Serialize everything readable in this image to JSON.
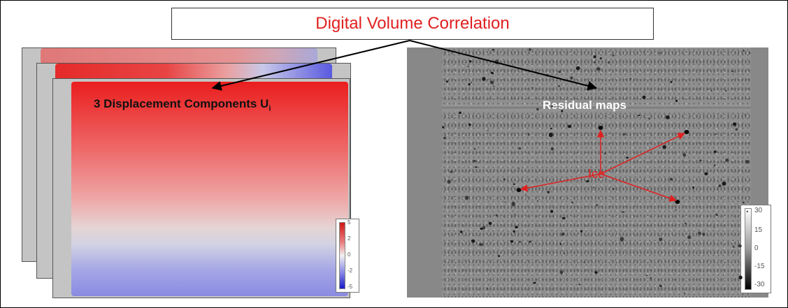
{
  "title": "Digital Volume Correlation",
  "displacement": {
    "label": "3 Displacement Components U",
    "subscript": "i",
    "colorbar_ticks": [
      "5",
      "2",
      "0",
      "-2",
      "-5"
    ]
  },
  "residual": {
    "label": "Residual maps",
    "colorbar_ticks": [
      "30",
      "15",
      "0",
      "-15",
      "-30"
    ]
  },
  "annotation": {
    "ice_label": "Ice",
    "color": "#e02020"
  },
  "colors": {
    "title_text": "#e02020",
    "arrow_black": "#000000",
    "arrow_red": "#e02020"
  }
}
